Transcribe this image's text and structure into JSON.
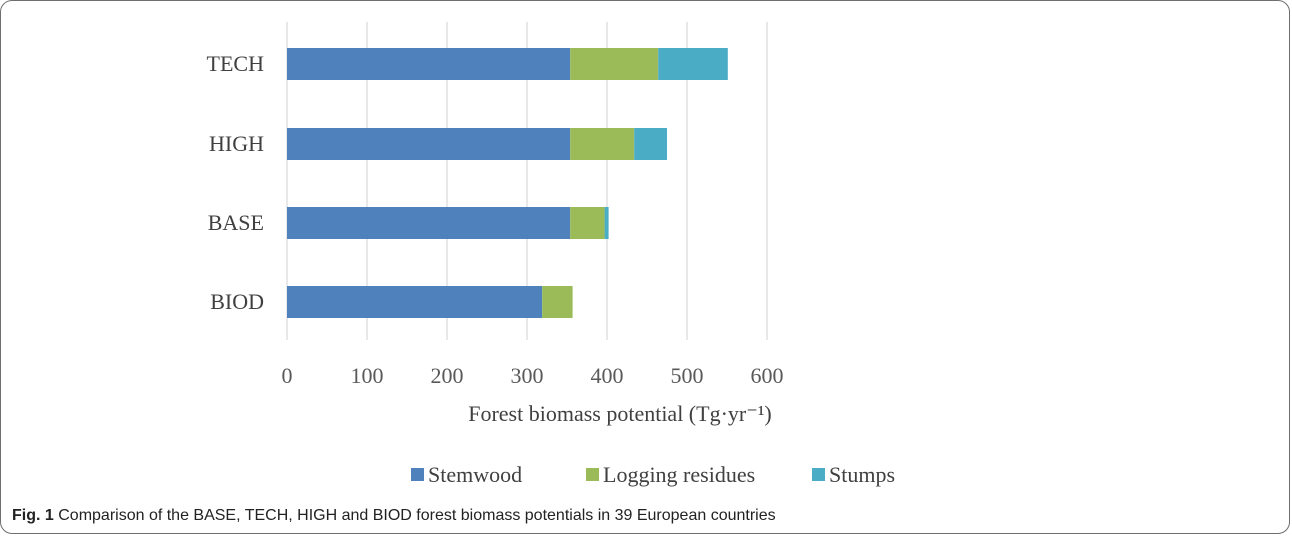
{
  "caption": {
    "label": "Fig. 1",
    "text": "Comparison of the BASE, TECH, HIGH and BIOD forest biomass potentials in 39 European countries"
  },
  "chart_data": {
    "type": "bar",
    "orientation": "horizontal",
    "stacked": true,
    "categories": [
      "TECH",
      "HIGH",
      "BASE",
      "BIOD"
    ],
    "series": [
      {
        "name": "Stemwood",
        "color": "#4f81bd",
        "values": [
          354,
          354,
          354,
          319
        ]
      },
      {
        "name": "Logging residues",
        "color": "#9bbb59",
        "values": [
          110,
          80,
          43,
          38
        ]
      },
      {
        "name": "Stumps",
        "color": "#4bacc6",
        "values": [
          87,
          41,
          5,
          0
        ]
      }
    ],
    "xlabel": "Forest biomass potential (Tg·yr⁻¹)",
    "ylabel": "",
    "xlim": [
      0,
      600
    ],
    "xticks": [
      "0",
      "100",
      "200",
      "300",
      "400",
      "500",
      "600"
    ],
    "grid": "vertical",
    "legend_position": "bottom"
  }
}
